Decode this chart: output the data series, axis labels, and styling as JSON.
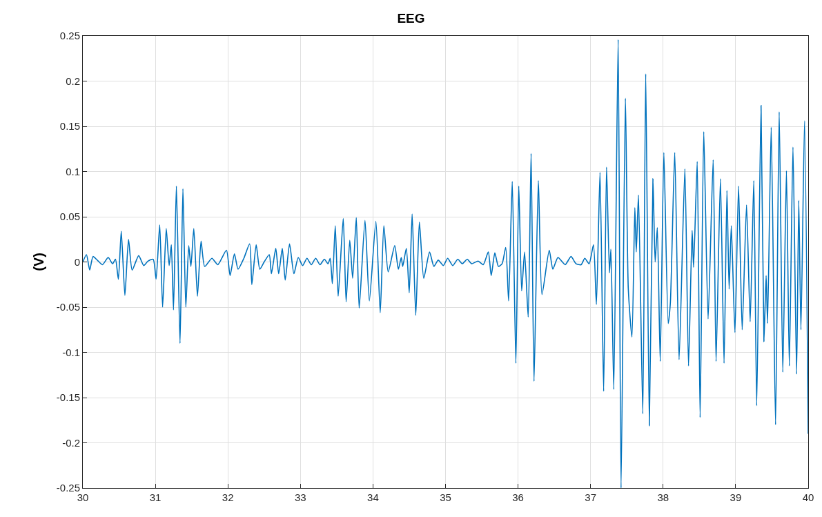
{
  "chart_data": {
    "type": "line",
    "title": "EEG",
    "ylabel": "(V)",
    "xlim": [
      30,
      40
    ],
    "xticks": [
      30,
      31,
      32,
      33,
      34,
      35,
      36,
      37,
      38,
      39,
      40
    ],
    "ylim": [
      -0.25,
      0.25
    ],
    "yticks": [
      -0.25,
      -0.2,
      -0.15,
      -0.1,
      -0.05,
      0,
      0.05,
      0.1,
      0.15,
      0.2,
      0.25
    ],
    "grid": true,
    "line_style": "solid",
    "series": [
      {
        "color": "#0072bd",
        "x": [
          30.0,
          30.05,
          30.095,
          30.14,
          30.2,
          30.27,
          30.35,
          30.41,
          30.45,
          30.49,
          30.53,
          30.58,
          30.63,
          30.68,
          30.77,
          30.84,
          30.9,
          30.97,
          31.01,
          31.06,
          31.1,
          31.15,
          31.19,
          31.22,
          31.25,
          31.29,
          31.34,
          31.38,
          31.42,
          31.46,
          31.49,
          31.53,
          31.58,
          31.63,
          31.68,
          31.78,
          31.86,
          31.98,
          32.03,
          32.09,
          32.14,
          32.22,
          32.3,
          32.33,
          32.39,
          32.44,
          32.5,
          32.57,
          32.6,
          32.66,
          32.7,
          32.75,
          32.79,
          32.85,
          32.91,
          32.97,
          33.03,
          33.09,
          33.15,
          33.21,
          33.27,
          33.33,
          33.38,
          33.41,
          33.44,
          33.48,
          33.52,
          33.59,
          33.63,
          33.68,
          33.72,
          33.77,
          33.81,
          33.89,
          33.95,
          34.04,
          34.1,
          34.15,
          34.21,
          34.3,
          34.35,
          34.39,
          34.41,
          34.46,
          34.5,
          34.54,
          34.59,
          34.64,
          34.7,
          34.78,
          34.84,
          34.9,
          34.97,
          35.03,
          35.1,
          35.17,
          35.23,
          35.3,
          35.36,
          35.45,
          35.52,
          35.59,
          35.63,
          35.68,
          35.73,
          35.78,
          35.83,
          35.87,
          35.92,
          35.97,
          36.01,
          36.05,
          36.09,
          36.14,
          36.18,
          36.22,
          36.28,
          36.33,
          36.43,
          36.48,
          36.55,
          36.65,
          36.73,
          36.8,
          36.87,
          36.92,
          36.98,
          37.04,
          37.08,
          37.13,
          37.18,
          37.22,
          37.26,
          37.28,
          37.32,
          37.38,
          37.42,
          37.48,
          37.52,
          37.57,
          37.61,
          37.63,
          37.66,
          37.72,
          37.76,
          37.81,
          37.86,
          37.89,
          37.92,
          37.96,
          38.01,
          38.07,
          38.1,
          38.16,
          38.22,
          38.3,
          38.35,
          38.4,
          38.42,
          38.47,
          38.51,
          38.56,
          38.62,
          38.69,
          38.73,
          38.79,
          38.84,
          38.88,
          38.91,
          38.94,
          38.99,
          39.04,
          39.09,
          39.15,
          39.2,
          39.25,
          39.29,
          39.35,
          39.39,
          39.42,
          39.44,
          39.49,
          39.55,
          39.6,
          39.65,
          39.7,
          39.74,
          39.79,
          39.84,
          39.87,
          39.9,
          39.95,
          40.0
        ],
        "values": [
          0.0,
          0.008,
          -0.009,
          0.006,
          0.002,
          -0.003,
          0.005,
          -0.002,
          0.003,
          -0.019,
          0.034,
          -0.037,
          0.025,
          -0.009,
          0.007,
          -0.004,
          0.001,
          0.003,
          -0.019,
          0.041,
          -0.05,
          0.037,
          -0.004,
          0.019,
          -0.053,
          0.084,
          -0.09,
          0.081,
          -0.05,
          0.018,
          -0.005,
          0.037,
          -0.038,
          0.023,
          -0.005,
          0.004,
          -0.003,
          0.013,
          -0.015,
          0.009,
          -0.008,
          0.004,
          0.02,
          -0.025,
          0.019,
          -0.008,
          0.0,
          0.008,
          -0.013,
          0.015,
          -0.013,
          0.015,
          -0.02,
          0.02,
          -0.013,
          0.005,
          -0.004,
          0.004,
          -0.003,
          0.004,
          -0.003,
          0.003,
          -0.002,
          0.004,
          -0.024,
          0.04,
          -0.038,
          0.048,
          -0.044,
          0.024,
          -0.018,
          0.049,
          -0.051,
          0.046,
          -0.043,
          0.045,
          -0.056,
          0.04,
          -0.011,
          0.018,
          -0.008,
          0.005,
          -0.005,
          0.015,
          -0.034,
          0.053,
          -0.059,
          0.044,
          -0.018,
          0.011,
          -0.005,
          0.002,
          -0.004,
          0.004,
          -0.004,
          0.003,
          -0.002,
          0.003,
          -0.002,
          0.001,
          -0.003,
          0.011,
          -0.015,
          0.01,
          -0.005,
          -0.002,
          0.016,
          -0.043,
          0.089,
          -0.112,
          0.084,
          -0.032,
          0.011,
          -0.061,
          0.12,
          -0.132,
          0.09,
          -0.036,
          0.013,
          -0.008,
          0.005,
          -0.003,
          0.006,
          -0.002,
          -0.003,
          0.004,
          -0.002,
          0.019,
          -0.047,
          0.099,
          -0.143,
          0.105,
          -0.012,
          0.014,
          -0.141,
          0.246,
          -0.25,
          0.181,
          -0.03,
          -0.083,
          0.06,
          0.011,
          0.074,
          -0.168,
          0.208,
          -0.181,
          0.092,
          0.0,
          0.038,
          -0.11,
          0.121,
          -0.068,
          -0.045,
          0.121,
          -0.108,
          0.103,
          -0.115,
          0.035,
          -0.006,
          0.111,
          -0.172,
          0.144,
          -0.063,
          0.113,
          -0.11,
          0.092,
          -0.112,
          0.079,
          -0.03,
          0.04,
          -0.078,
          0.084,
          -0.075,
          0.063,
          -0.066,
          0.09,
          -0.159,
          0.173,
          -0.088,
          -0.015,
          -0.068,
          0.149,
          -0.18,
          0.166,
          -0.122,
          0.101,
          -0.115,
          0.127,
          -0.124,
          0.068,
          -0.075,
          0.156,
          -0.19
        ]
      }
    ]
  }
}
